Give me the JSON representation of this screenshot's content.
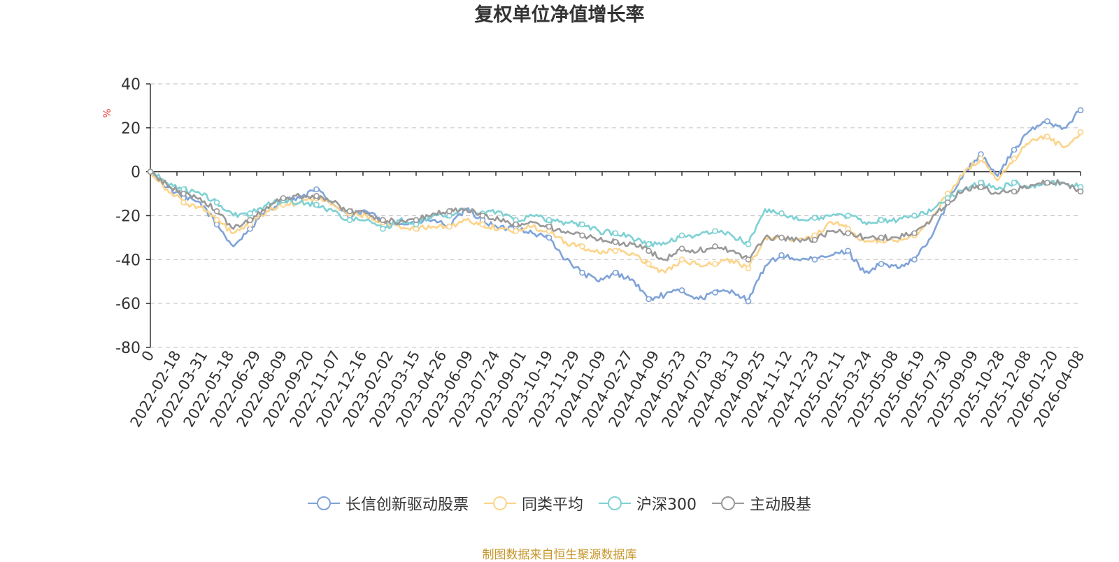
{
  "chart_data": {
    "type": "line",
    "title": "复权单位净值增长率",
    "ylabel": "%",
    "xlabel": "",
    "ylim": [
      -80,
      40
    ],
    "yticks": [
      40,
      20,
      0,
      -20,
      -40,
      -60,
      -80
    ],
    "x_tick_labels": [
      "0",
      "2022-02-18",
      "2022-03-31",
      "2022-05-18",
      "2022-06-29",
      "2022-08-09",
      "2022-09-20",
      "2022-11-07",
      "2022-12-16",
      "2023-02-02",
      "2023-03-15",
      "2023-04-26",
      "2023-06-09",
      "2023-07-24",
      "2023-09-01",
      "2023-10-19",
      "2023-11-29",
      "2024-01-09",
      "2024-02-27",
      "2024-04-09",
      "2024-05-23",
      "2024-07-03",
      "2024-08-13",
      "2024-09-25",
      "2024-11-12",
      "2024-12-23",
      "2025-02-11",
      "2025-03-24",
      "2025-05-08",
      "2025-06-19",
      "2025-07-30",
      "2025-09-09",
      "2025-10-28",
      "2025-12-08",
      "2026-01-20",
      "2026-04-08"
    ],
    "grid": true,
    "legend_position": "bottom",
    "series": [
      {
        "name": "长信创新驱动股票",
        "color": "#7fa3d8",
        "values": [
          0,
          -7,
          -12,
          -14,
          -24,
          -34,
          -26,
          -18,
          -13,
          -12,
          -8,
          -15,
          -20,
          -18,
          -22,
          -24,
          -23,
          -22,
          -25,
          -17,
          -22,
          -26,
          -25,
          -28,
          -30,
          -40,
          -46,
          -50,
          -46,
          -49,
          -58,
          -56,
          -54,
          -58,
          -55,
          -54,
          -59,
          -43,
          -38,
          -40,
          -40,
          -38,
          -36,
          -46,
          -42,
          -44,
          -40,
          -30,
          -14,
          0,
          8,
          -2,
          10,
          19,
          23,
          20,
          28
        ]
      },
      {
        "name": "同类平均",
        "color": "#fcd48a",
        "values": [
          0,
          -8,
          -14,
          -16,
          -22,
          -28,
          -24,
          -18,
          -15,
          -14,
          -12,
          -15,
          -19,
          -20,
          -23,
          -25,
          -26,
          -25,
          -25,
          -22,
          -24,
          -26,
          -27,
          -25,
          -27,
          -32,
          -34,
          -37,
          -36,
          -37,
          -42,
          -46,
          -40,
          -42,
          -42,
          -40,
          -44,
          -30,
          -30,
          -31,
          -29,
          -23,
          -26,
          -32,
          -31,
          -32,
          -29,
          -22,
          -10,
          0,
          6,
          -4,
          6,
          14,
          16,
          11,
          18
        ]
      },
      {
        "name": "沪深300",
        "color": "#7fd1d4",
        "values": [
          0,
          -5,
          -8,
          -10,
          -14,
          -20,
          -19,
          -15,
          -13,
          -14,
          -15,
          -18,
          -22,
          -22,
          -26,
          -22,
          -24,
          -20,
          -20,
          -17,
          -19,
          -18,
          -22,
          -20,
          -22,
          -23,
          -24,
          -27,
          -28,
          -30,
          -33,
          -33,
          -29,
          -29,
          -27,
          -29,
          -33,
          -17,
          -19,
          -22,
          -21,
          -20,
          -20,
          -23,
          -22,
          -22,
          -20,
          -18,
          -12,
          -8,
          -5,
          -8,
          -5,
          -7,
          -5,
          -5,
          -7
        ]
      },
      {
        "name": "主动股基",
        "color": "#999999",
        "values": [
          0,
          -6,
          -10,
          -12,
          -18,
          -26,
          -22,
          -16,
          -12,
          -11,
          -11,
          -14,
          -18,
          -19,
          -22,
          -23,
          -22,
          -19,
          -18,
          -17,
          -20,
          -22,
          -24,
          -23,
          -25,
          -28,
          -29,
          -31,
          -32,
          -33,
          -36,
          -40,
          -35,
          -36,
          -34,
          -36,
          -40,
          -30,
          -30,
          -31,
          -31,
          -27,
          -28,
          -30,
          -30,
          -30,
          -28,
          -22,
          -14,
          -8,
          -7,
          -10,
          -9,
          -6,
          -5,
          -5,
          -9
        ]
      }
    ]
  },
  "source_note": "制图数据来自恒生聚源数据库"
}
